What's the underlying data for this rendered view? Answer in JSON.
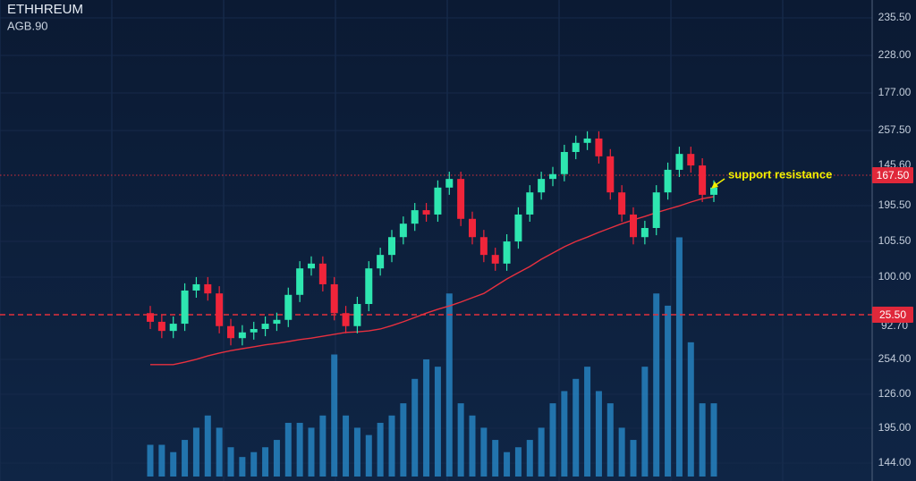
{
  "chart_data": {
    "type": "candlestick",
    "title": "ETHHREUM",
    "subtitle": "AGB.90",
    "annotation": "support resistance",
    "ylim": [
      0,
      100
    ],
    "volume_lim": [
      0,
      100
    ],
    "up_color": "#2ee6b0",
    "down_color": "#f0253a",
    "volume_color": "#2a8fd0",
    "ma_color": "#e8303f",
    "axis_labels": [
      "235.50",
      "228.00",
      "177.00",
      "257.50",
      "145.60",
      "195.50",
      "105.50",
      "100.00",
      "92.70",
      "254.00",
      "126.00",
      "195.00",
      "144.00"
    ],
    "price_tags": [
      "167.50",
      "25.50"
    ],
    "open": [
      34.9,
      33.1,
      31.2,
      32.7,
      39.6,
      40.9,
      39.0,
      32.2,
      29.7,
      30.9,
      31.6,
      32.7,
      33.5,
      38.7,
      44.2,
      45.2,
      40.9,
      34.9,
      32.2,
      36.8,
      44.2,
      47.0,
      50.7,
      53.5,
      56.3,
      55.4,
      61.0,
      62.8,
      54.5,
      50.7,
      47.0,
      45.2,
      49.8,
      55.4,
      60.0,
      62.8,
      63.8,
      68.4,
      70.3,
      71.2,
      67.5,
      60.0,
      55.4,
      50.7,
      52.6,
      60.0,
      64.7,
      68.0,
      65.6,
      59.5
    ],
    "high": [
      36.4,
      34.6,
      34.2,
      41.1,
      42.4,
      42.4,
      40.5,
      33.7,
      32.4,
      33.1,
      34.2,
      35.0,
      40.2,
      45.7,
      46.7,
      46.7,
      42.4,
      36.4,
      38.3,
      45.7,
      48.5,
      52.2,
      55.0,
      57.8,
      57.8,
      62.5,
      64.3,
      64.3,
      56.0,
      52.2,
      48.5,
      51.3,
      56.9,
      61.5,
      64.3,
      65.3,
      69.9,
      71.8,
      72.7,
      72.7,
      69.0,
      61.5,
      56.9,
      54.1,
      61.5,
      66.2,
      69.5,
      69.5,
      67.1,
      62.5
    ],
    "low": [
      31.6,
      29.7,
      29.7,
      31.2,
      38.1,
      37.5,
      30.7,
      28.2,
      28.2,
      29.4,
      30.1,
      31.2,
      32.0,
      37.2,
      42.7,
      39.4,
      33.4,
      30.7,
      30.7,
      35.3,
      42.7,
      45.5,
      49.2,
      52.0,
      53.9,
      53.9,
      59.5,
      53.0,
      49.2,
      45.5,
      43.7,
      43.7,
      48.3,
      53.9,
      58.5,
      61.3,
      62.3,
      66.9,
      68.8,
      66.0,
      58.5,
      53.9,
      49.2,
      49.2,
      51.1,
      58.5,
      63.2,
      64.1,
      58.0,
      58.0
    ],
    "close": [
      33.1,
      31.2,
      32.7,
      39.6,
      40.9,
      39.0,
      32.2,
      29.7,
      30.9,
      31.6,
      32.7,
      33.5,
      38.7,
      44.2,
      45.2,
      40.9,
      34.9,
      32.2,
      36.8,
      44.2,
      47.0,
      50.7,
      53.5,
      56.3,
      55.4,
      61.0,
      62.8,
      54.5,
      50.7,
      47.0,
      45.2,
      49.8,
      55.4,
      60.0,
      62.8,
      63.8,
      68.4,
      70.3,
      71.2,
      67.5,
      60.0,
      55.4,
      50.7,
      52.6,
      60.0,
      64.7,
      68.0,
      65.6,
      59.5,
      61.0
    ],
    "ma": [
      24.2,
      24.2,
      24.2,
      24.7,
      25.3,
      26.0,
      26.6,
      27.1,
      27.5,
      27.9,
      28.3,
      28.6,
      29.0,
      29.4,
      29.7,
      30.1,
      30.5,
      30.9,
      31.0,
      31.2,
      31.6,
      32.3,
      33.1,
      34.0,
      34.9,
      35.7,
      36.4,
      37.2,
      38.1,
      39.0,
      40.5,
      42.0,
      43.3,
      44.6,
      46.1,
      47.4,
      48.7,
      49.8,
      50.7,
      51.7,
      52.6,
      53.5,
      54.3,
      55.0,
      55.8,
      56.5,
      57.2,
      58.0,
      58.7,
      59.1
    ],
    "volume": [
      13,
      13,
      10,
      15,
      20,
      25,
      20,
      12,
      8,
      10,
      12,
      15,
      22,
      22,
      20,
      25,
      50,
      25,
      20,
      17,
      22,
      25,
      30,
      40,
      48,
      45,
      75,
      30,
      25,
      20,
      15,
      10,
      12,
      15,
      20,
      30,
      35,
      40,
      45,
      35,
      30,
      20,
      15,
      45,
      75,
      70,
      98,
      55,
      30,
      30
    ]
  }
}
